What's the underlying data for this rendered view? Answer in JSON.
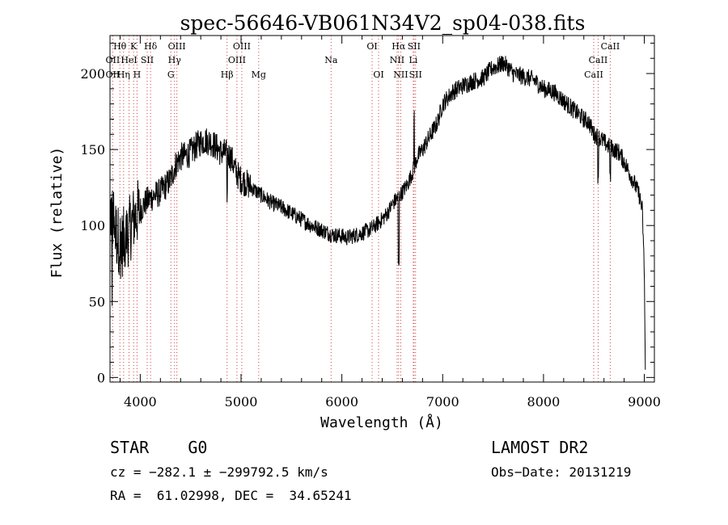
{
  "chart_data": {
    "type": "line",
    "title": "spec-56646-VB061N34V2_sp04-038.fits",
    "xlabel": "Wavelength (Å)",
    "ylabel": "Flux (relative)",
    "xlim": [
      3700,
      9100
    ],
    "ylim": [
      -3,
      225
    ],
    "grid": false,
    "x_ticks": [
      4000,
      5000,
      6000,
      7000,
      8000,
      9000
    ],
    "y_ticks": [
      0,
      50,
      100,
      150,
      200
    ],
    "series": [
      {
        "color": "#000000",
        "x": [
          3700,
          3730,
          3760,
          3790,
          3820,
          3850,
          3880,
          3910,
          3940,
          3970,
          4000,
          4050,
          4100,
          4150,
          4200,
          4250,
          4300,
          4350,
          4400,
          4450,
          4500,
          4550,
          4600,
          4650,
          4700,
          4750,
          4800,
          4850,
          4900,
          4950,
          5000,
          5050,
          5100,
          5200,
          5300,
          5400,
          5500,
          5600,
          5700,
          5800,
          5900,
          6000,
          6050,
          6100,
          6200,
          6300,
          6400,
          6450,
          6500,
          6550,
          6600,
          6650,
          6700,
          6750,
          6800,
          6850,
          6900,
          6950,
          7000,
          7100,
          7200,
          7300,
          7400,
          7500,
          7550,
          7600,
          7650,
          7700,
          7800,
          7900,
          8000,
          8100,
          8200,
          8300,
          8400,
          8450,
          8500,
          8550,
          8600,
          8650,
          8700,
          8750,
          8800,
          8850,
          8900,
          8950,
          8980,
          9000,
          9010
        ],
        "y": [
          110,
          105,
          95,
          90,
          88,
          92,
          95,
          100,
          105,
          108,
          110,
          115,
          118,
          120,
          122,
          126,
          130,
          140,
          145,
          146,
          148,
          152,
          155,
          156,
          155,
          152,
          148,
          148,
          145,
          135,
          130,
          128,
          125,
          120,
          115,
          112,
          108,
          104,
          100,
          97,
          94,
          93,
          92,
          93,
          95,
          98,
          104,
          108,
          114,
          118,
          122,
          127,
          135,
          145,
          150,
          156,
          162,
          168,
          180,
          188,
          192,
          195,
          197,
          204,
          205,
          207,
          204,
          200,
          198,
          196,
          190,
          188,
          182,
          176,
          170,
          168,
          160,
          158,
          155,
          152,
          150,
          148,
          142,
          135,
          128,
          120,
          110,
          70,
          5
        ]
      }
    ],
    "spectral_lines": [
      {
        "name": "Hθ",
        "wavelength": 3798,
        "row": 1
      },
      {
        "name": "K",
        "wavelength": 3934,
        "row": 1
      },
      {
        "name": "Hδ",
        "wavelength": 4102,
        "row": 1
      },
      {
        "name": "OIII",
        "wavelength": 4363,
        "row": 1
      },
      {
        "name": "OIII",
        "wavelength": 5007,
        "row": 1
      },
      {
        "name": "OI",
        "wavelength": 6300,
        "row": 1
      },
      {
        "name": "Hα",
        "wavelength": 6563,
        "row": 1
      },
      {
        "name": "SII",
        "wavelength": 6716,
        "row": 1
      },
      {
        "name": "CaII",
        "wavelength": 8662,
        "row": 1
      },
      {
        "name": "OII",
        "wavelength": 3727,
        "row": 2
      },
      {
        "name": "HeI",
        "wavelength": 3889,
        "row": 2
      },
      {
        "name": "SII",
        "wavelength": 4069,
        "row": 2
      },
      {
        "name": "Hγ",
        "wavelength": 4340,
        "row": 2
      },
      {
        "name": "OIII",
        "wavelength": 4959,
        "row": 2
      },
      {
        "name": "NII",
        "wavelength": 6548,
        "row": 2
      },
      {
        "name": "Li",
        "wavelength": 6708,
        "row": 2
      },
      {
        "name": "CaII",
        "wavelength": 8542,
        "row": 2
      },
      {
        "name": "OII",
        "wavelength": 3727,
        "row": 3
      },
      {
        "name": "Hη",
        "wavelength": 3835,
        "row": 3
      },
      {
        "name": "H",
        "wavelength": 3968,
        "row": 3
      },
      {
        "name": "G",
        "wavelength": 4304,
        "row": 3
      },
      {
        "name": "Hβ",
        "wavelength": 4861,
        "row": 3
      },
      {
        "name": "Mg",
        "wavelength": 5175,
        "row": 3
      },
      {
        "name": "Na",
        "wavelength": 5893,
        "row": 2
      },
      {
        "name": "OI",
        "wavelength": 6364,
        "row": 3
      },
      {
        "name": "NII",
        "wavelength": 6584,
        "row": 3
      },
      {
        "name": "SII",
        "wavelength": 6731,
        "row": 3
      },
      {
        "name": "CaII",
        "wavelength": 8498,
        "row": 3
      }
    ]
  },
  "footer": {
    "object_class": "STAR    G0",
    "survey": "LAMOST DR2",
    "cz": "cz = −282.1 ± −299792.5 km/s",
    "obs_date": "Obs−Date: 20131219",
    "coords": "RA =  61.02998, DEC =  34.65241"
  }
}
